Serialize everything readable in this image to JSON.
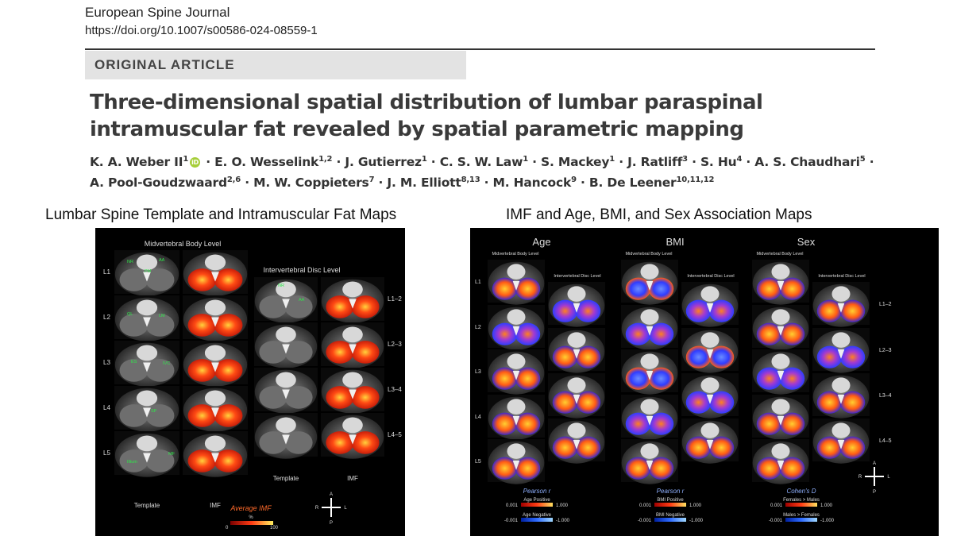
{
  "journal": "European Spine Journal",
  "doi": "https://doi.org/10.1007/s00586-024-08559-1",
  "article_type": "ORIGINAL ARTICLE",
  "title_line1": "Three-dimensional spatial distribution of lumbar paraspinal",
  "title_line2": "intramuscular fat revealed by spatial parametric mapping",
  "authors_line1": [
    {
      "name": "K. A. Weber II",
      "sup": "1",
      "orcid": true
    },
    {
      "name": "E. O. Wesselink",
      "sup": "1,2"
    },
    {
      "name": "J. Gutierrez",
      "sup": "1"
    },
    {
      "name": "C. S. W. Law",
      "sup": "1"
    },
    {
      "name": "S. Mackey",
      "sup": "1"
    },
    {
      "name": "J. Ratliff",
      "sup": "3"
    },
    {
      "name": "S. Hu",
      "sup": "4"
    },
    {
      "name": "A. S. Chaudhari",
      "sup": "5"
    }
  ],
  "authors_line2": [
    {
      "name": "A. Pool-Goudzwaard",
      "sup": "2,6"
    },
    {
      "name": "M. W. Coppieters",
      "sup": "7"
    },
    {
      "name": "J. M. Elliott",
      "sup": "8,13"
    },
    {
      "name": "M. Hancock",
      "sup": "9"
    },
    {
      "name": "B. De Leener",
      "sup": "10,11,12"
    }
  ],
  "orcid_label": "iD",
  "caption_left": "Lumbar Spine Template and Intramuscular Fat Maps",
  "caption_right": "IMF and Age, BMI, and Sex Association Maps",
  "left_figure": {
    "midvertebral_title": "Midvertebral Body Level",
    "intervertebral_title": "Intervertebral Disc Level",
    "levels_left": [
      "L1",
      "L2",
      "L3",
      "L4",
      "L5"
    ],
    "levels_right": [
      "L1–2",
      "L2–3",
      "L3–4",
      "L4–5"
    ],
    "col_template": "Template",
    "col_imf": "IMF",
    "legend_title": "Average IMF",
    "legend_unit": "%",
    "legend_min": "0",
    "legend_max": "100",
    "orientation": {
      "a": "A",
      "p": "P",
      "r": "R",
      "l": "L"
    },
    "anatomy_labels": [
      "NR",
      "AA",
      "PM",
      "QL",
      "LM",
      "ES",
      "IVC",
      "SP",
      "MF",
      "Illium"
    ]
  },
  "right_figure": {
    "groups": [
      "Age",
      "BMI",
      "Sex"
    ],
    "midvertebral_title": "Midvertebral Body Level",
    "intervertebral_title": "Intervertebral Disc Level",
    "levels_left": [
      "L1",
      "L2",
      "L3",
      "L4",
      "L5"
    ],
    "levels_right": [
      "L1–2",
      "L2–3",
      "L3–4",
      "L4–5"
    ],
    "legends": [
      {
        "stat": "Pearson r",
        "pos_label": "Age Positive",
        "neg_label": "Age Negative",
        "pos_min": "0.001",
        "pos_max": "1.000",
        "neg_min": "-0.001",
        "neg_max": "-1.000"
      },
      {
        "stat": "Pearson r",
        "pos_label": "BMI Positive",
        "neg_label": "BMI Negative",
        "pos_min": "0.001",
        "pos_max": "1.000",
        "neg_min": "-0.001",
        "neg_max": "-1.000"
      },
      {
        "stat": "Cohen's D",
        "pos_label": "Females > Males",
        "neg_label": "Males > Females",
        "pos_min": "0.001",
        "pos_max": "1.000",
        "neg_min": "-0.001",
        "neg_max": "-1.000"
      }
    ],
    "orientation": {
      "a": "A",
      "p": "P",
      "r": "R",
      "l": "L"
    }
  },
  "colors": {
    "fat_hot": "#ff3c14",
    "positive": "#ffb000",
    "negative": "#2f3cff",
    "panel_bg": "#000000",
    "banner_bg": "#e3e3e3",
    "marker_green": "#2fe84a"
  }
}
